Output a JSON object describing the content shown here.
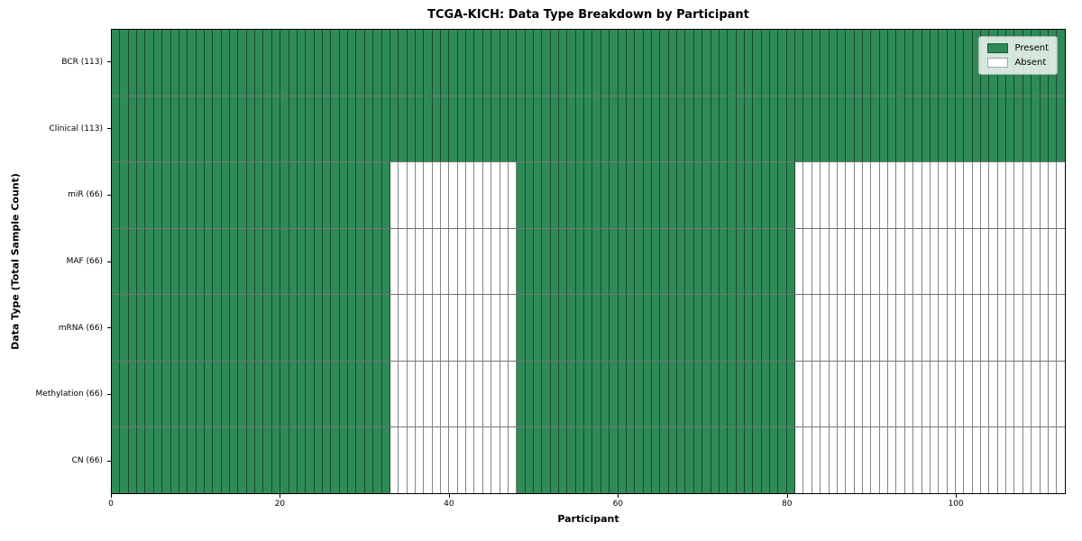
{
  "chart_data": {
    "type": "heatmap",
    "title": "TCGA-KICH: Data Type Breakdown by Participant",
    "xlabel": "Participant",
    "ylabel": "Data Type (Total Sample Count)",
    "xlim": [
      0,
      113
    ],
    "x_ticks": [
      0,
      20,
      40,
      60,
      80,
      100
    ],
    "n_participants": 113,
    "grid": "cell-edges",
    "legend_position": "upper right",
    "legend": [
      {
        "label": "Present",
        "color": "#2e8b57"
      },
      {
        "label": "Absent",
        "color": "#ffffff"
      }
    ],
    "colors": {
      "present": "#2e8b57",
      "absent": "#ffffff",
      "cell_edge": "rgba(0,0,0,0.48)",
      "frame": "#000000"
    },
    "rows": [
      {
        "data_type": "BCR",
        "total": 113,
        "label": "BCR (113)",
        "present_ranges": [
          [
            0,
            113
          ]
        ]
      },
      {
        "data_type": "Clinical",
        "total": 113,
        "label": "Clinical (113)",
        "present_ranges": [
          [
            0,
            113
          ]
        ]
      },
      {
        "data_type": "miR",
        "total": 66,
        "label": "miR (66)",
        "present_ranges": [
          [
            0,
            33
          ],
          [
            48,
            81
          ]
        ]
      },
      {
        "data_type": "MAF",
        "total": 66,
        "label": "MAF (66)",
        "present_ranges": [
          [
            0,
            33
          ],
          [
            48,
            81
          ]
        ]
      },
      {
        "data_type": "mRNA",
        "total": 66,
        "label": "mRNA (66)",
        "present_ranges": [
          [
            0,
            33
          ],
          [
            48,
            81
          ]
        ]
      },
      {
        "data_type": "Methylation",
        "total": 66,
        "label": "Methylation (66)",
        "present_ranges": [
          [
            0,
            33
          ],
          [
            48,
            81
          ]
        ]
      },
      {
        "data_type": "CN",
        "total": 66,
        "label": "CN (66)",
        "present_ranges": [
          [
            0,
            33
          ],
          [
            48,
            81
          ]
        ]
      }
    ]
  }
}
